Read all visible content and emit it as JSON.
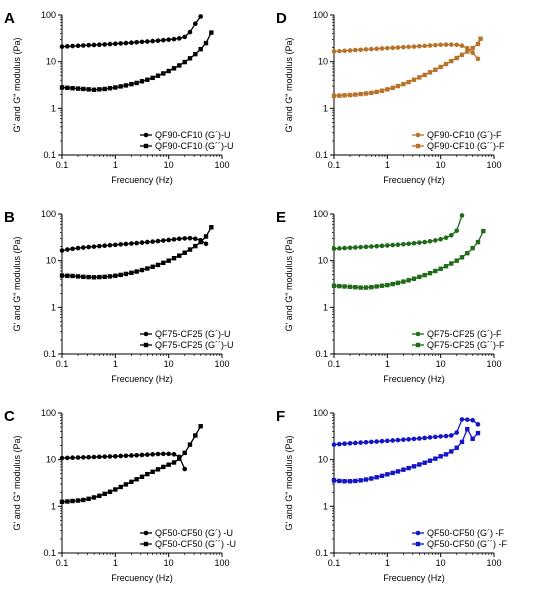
{
  "chart_data": [
    {
      "type": "line",
      "panel": "A",
      "color": "#000000",
      "xscale": "log",
      "yscale": "log",
      "xlim": [
        0.1,
        100
      ],
      "ylim": [
        0.1,
        100
      ],
      "xticks": [
        "0.1",
        "1",
        "10",
        "100"
      ],
      "yticks": [
        "0.1",
        "1",
        "10",
        "100"
      ],
      "xlabel": "Frecuency (Hz)",
      "ylabel": "G' and G\" modulus (Pa)",
      "legend_position": "bottom-right",
      "series": [
        {
          "name": "QF90-CF10 (G´)-U",
          "marker": "circle",
          "x": [
            0.1,
            0.126,
            0.158,
            0.2,
            0.251,
            0.316,
            0.398,
            0.501,
            0.631,
            0.794,
            1,
            1.26,
            1.58,
            2,
            2.51,
            3.16,
            3.98,
            5.01,
            6.31,
            7.94,
            10,
            12.6,
            15.8,
            20,
            25.1,
            31.6,
            39.8
          ],
          "y": [
            21,
            21.3,
            21.6,
            21.9,
            22.2,
            22.5,
            22.8,
            23.1,
            23.4,
            23.8,
            24.2,
            24.6,
            25,
            25.5,
            26,
            26.5,
            27,
            27.6,
            28.2,
            28.9,
            29.6,
            30.4,
            31.5,
            34,
            43,
            65,
            93
          ]
        },
        {
          "name": "QF90-CF10 (G´´)-U",
          "marker": "square",
          "x": [
            0.1,
            0.126,
            0.158,
            0.2,
            0.251,
            0.316,
            0.398,
            0.501,
            0.631,
            0.794,
            1,
            1.26,
            1.58,
            2,
            2.51,
            3.16,
            3.98,
            5.01,
            6.31,
            7.94,
            10,
            12.6,
            15.8,
            20,
            25.1,
            31.6,
            39.8,
            50.1,
            63.1
          ],
          "y": [
            2.8,
            2.75,
            2.7,
            2.65,
            2.6,
            2.55,
            2.5,
            2.55,
            2.6,
            2.7,
            2.8,
            2.95,
            3.1,
            3.3,
            3.5,
            3.8,
            4.1,
            4.5,
            5,
            5.6,
            6.3,
            7.2,
            8.3,
            9.8,
            11.8,
            14.5,
            18.5,
            25,
            42
          ]
        }
      ]
    },
    {
      "type": "line",
      "panel": "B",
      "color": "#000000",
      "xscale": "log",
      "yscale": "log",
      "xlim": [
        0.1,
        100
      ],
      "ylim": [
        0.1,
        100
      ],
      "xticks": [
        "0.1",
        "1",
        "10",
        "100"
      ],
      "yticks": [
        "0.1",
        "1",
        "10",
        "100"
      ],
      "xlabel": "Frecuency (Hz)",
      "ylabel": "G' and G\" modulus (Pa)",
      "legend_position": "bottom-right",
      "series": [
        {
          "name": "QF75-CF25 (G´)-U",
          "marker": "circle",
          "x": [
            0.1,
            0.126,
            0.158,
            0.2,
            0.251,
            0.316,
            0.398,
            0.501,
            0.631,
            0.794,
            1,
            1.26,
            1.58,
            2,
            2.51,
            3.16,
            3.98,
            5.01,
            6.31,
            7.94,
            10,
            12.6,
            15.8,
            20,
            25.1,
            31.6,
            39.8,
            50.1
          ],
          "y": [
            16.5,
            17.3,
            18,
            18.6,
            19.1,
            19.6,
            20,
            20.5,
            20.9,
            21.4,
            21.8,
            22.3,
            22.8,
            23.3,
            23.8,
            24.4,
            25,
            25.6,
            26.3,
            27,
            27.8,
            28.6,
            29.4,
            30,
            30.3,
            29.5,
            27.5,
            23
          ]
        },
        {
          "name": "QF75-CF25 (G´´)-U",
          "marker": "square",
          "x": [
            0.1,
            0.126,
            0.158,
            0.2,
            0.251,
            0.316,
            0.398,
            0.501,
            0.631,
            0.794,
            1,
            1.26,
            1.58,
            2,
            2.51,
            3.16,
            3.98,
            5.01,
            6.31,
            7.94,
            10,
            12.6,
            15.8,
            20,
            25.1,
            31.6,
            39.8,
            50.1,
            63.1
          ],
          "y": [
            4.8,
            4.75,
            4.7,
            4.6,
            4.5,
            4.45,
            4.4,
            4.45,
            4.5,
            4.6,
            4.75,
            4.95,
            5.2,
            5.5,
            5.85,
            6.3,
            6.8,
            7.4,
            8.1,
            9,
            10,
            11.3,
            12.8,
            14.8,
            17.3,
            20.5,
            25,
            33,
            52
          ]
        }
      ]
    },
    {
      "type": "line",
      "panel": "C",
      "color": "#000000",
      "xscale": "log",
      "yscale": "log",
      "xlim": [
        0.1,
        100
      ],
      "ylim": [
        0.1,
        100
      ],
      "xticks": [
        "0.1",
        "1",
        "10",
        "100"
      ],
      "yticks": [
        "0.1",
        "1",
        "10",
        "100"
      ],
      "xlabel": "Frecuency (Hz)",
      "ylabel": "G' and G\" modulus (Pa)",
      "legend_position": "bottom-right",
      "series": [
        {
          "name": "QF50-CF50 (G´) -U",
          "marker": "circle",
          "x": [
            0.1,
            0.126,
            0.158,
            0.2,
            0.251,
            0.316,
            0.398,
            0.501,
            0.631,
            0.794,
            1,
            1.26,
            1.58,
            2,
            2.51,
            3.16,
            3.98,
            5.01,
            6.31,
            7.94,
            10,
            12.6,
            15.8,
            20
          ],
          "y": [
            10.8,
            10.9,
            11,
            11.1,
            11.2,
            11.3,
            11.4,
            11.5,
            11.6,
            11.7,
            11.8,
            12,
            12.1,
            12.3,
            12.4,
            12.6,
            12.8,
            13,
            13.2,
            13.3,
            13.3,
            13,
            11.5,
            6.3
          ]
        },
        {
          "name": "QF50-CF50 (G´´) -U",
          "marker": "square",
          "x": [
            0.1,
            0.126,
            0.158,
            0.2,
            0.251,
            0.316,
            0.398,
            0.501,
            0.631,
            0.794,
            1,
            1.26,
            1.58,
            2,
            2.51,
            3.16,
            3.98,
            5.01,
            6.31,
            7.94,
            10,
            12.6,
            15.8,
            20,
            25.1,
            31.6,
            39.8
          ],
          "y": [
            1.25,
            1.27,
            1.3,
            1.33,
            1.37,
            1.45,
            1.55,
            1.68,
            1.85,
            2.05,
            2.3,
            2.6,
            2.95,
            3.35,
            3.8,
            4.3,
            4.9,
            5.5,
            6.2,
            7,
            7.8,
            8.7,
            10.5,
            14,
            21,
            33,
            52
          ]
        }
      ]
    },
    {
      "type": "line",
      "panel": "D",
      "color": "#b8732a",
      "xscale": "log",
      "yscale": "log",
      "xlim": [
        0.1,
        100
      ],
      "ylim": [
        0.1,
        100
      ],
      "xticks": [
        "0.1",
        "1",
        "10",
        "100"
      ],
      "yticks": [
        "0.1",
        "1",
        "10",
        "100"
      ],
      "xlabel": "Frecuency (Hz)",
      "ylabel": "G' and G\" modulus (Pa)",
      "legend_position": "bottom-right",
      "series": [
        {
          "name": "QF90-CF10 (G´)-F",
          "marker": "circle",
          "x": [
            0.1,
            0.126,
            0.158,
            0.2,
            0.251,
            0.316,
            0.398,
            0.501,
            0.631,
            0.794,
            1,
            1.26,
            1.58,
            2,
            2.51,
            3.16,
            3.98,
            5.01,
            6.31,
            7.94,
            10,
            12.6,
            15.8,
            20,
            25.1,
            31.6,
            39.8,
            50.1
          ],
          "y": [
            16.5,
            16.8,
            17.1,
            17.4,
            17.7,
            18,
            18.3,
            18.6,
            18.9,
            19.2,
            19.5,
            19.8,
            20.1,
            20.4,
            20.7,
            21,
            21.4,
            21.8,
            22.2,
            22.6,
            23,
            23.2,
            23.2,
            23,
            22,
            19.5,
            15.5,
            11.5
          ]
        },
        {
          "name": "QF90-CF10 (G´´)-F",
          "marker": "square",
          "x": [
            0.1,
            0.126,
            0.158,
            0.2,
            0.251,
            0.316,
            0.398,
            0.501,
            0.631,
            0.794,
            1,
            1.26,
            1.58,
            2,
            2.51,
            3.16,
            3.98,
            5.01,
            6.31,
            7.94,
            10,
            12.6,
            15.8,
            20,
            25.1,
            31.6,
            39.8,
            50.1,
            56
          ],
          "y": [
            1.85,
            1.87,
            1.9,
            1.93,
            1.97,
            2.02,
            2.08,
            2.15,
            2.25,
            2.38,
            2.55,
            2.75,
            3,
            3.3,
            3.65,
            4.1,
            4.6,
            5.2,
            5.9,
            6.7,
            7.7,
            8.9,
            10.3,
            12,
            14,
            16.5,
            19.5,
            24,
            31
          ]
        }
      ]
    },
    {
      "type": "line",
      "panel": "E",
      "color": "#1f6b1a",
      "xscale": "log",
      "yscale": "log",
      "xlim": [
        0.1,
        100
      ],
      "ylim": [
        0.1,
        100
      ],
      "xticks": [
        "0.1",
        "1",
        "10",
        "100"
      ],
      "yticks": [
        "0.1",
        "1",
        "10",
        "100"
      ],
      "xlabel": "Frecuency (Hz)",
      "ylabel": "G' and G\" modulus (Pa)",
      "legend_position": "bottom-right",
      "series": [
        {
          "name": "QF75-CF25 (G´)-F",
          "marker": "circle",
          "x": [
            0.1,
            0.126,
            0.158,
            0.2,
            0.251,
            0.316,
            0.398,
            0.501,
            0.631,
            0.794,
            1,
            1.26,
            1.58,
            2,
            2.51,
            3.16,
            3.98,
            5.01,
            6.31,
            7.94,
            10,
            12.6,
            15.8,
            20,
            25.1
          ],
          "y": [
            18,
            18.3,
            18.6,
            18.9,
            19.2,
            19.5,
            19.8,
            20.1,
            20.4,
            20.8,
            21.2,
            21.6,
            22,
            22.5,
            23,
            23.6,
            24.3,
            25,
            26,
            27.2,
            28.8,
            31,
            35,
            44,
            93
          ]
        },
        {
          "name": "QF75-CF25 (G´´)-F",
          "marker": "square",
          "x": [
            0.1,
            0.126,
            0.158,
            0.2,
            0.251,
            0.316,
            0.398,
            0.501,
            0.631,
            0.794,
            1,
            1.26,
            1.58,
            2,
            2.51,
            3.16,
            3.98,
            5.01,
            6.31,
            7.94,
            10,
            12.6,
            15.8,
            20,
            25.1,
            31.6,
            39.8,
            50.1,
            63.1
          ],
          "y": [
            2.9,
            2.85,
            2.8,
            2.75,
            2.7,
            2.65,
            2.65,
            2.7,
            2.8,
            2.9,
            3,
            3.15,
            3.35,
            3.55,
            3.8,
            4.1,
            4.5,
            4.9,
            5.4,
            6,
            6.7,
            7.6,
            8.7,
            10,
            11.8,
            14.5,
            18.5,
            25,
            43
          ]
        }
      ]
    },
    {
      "type": "line",
      "panel": "F",
      "color": "#1414c8",
      "xscale": "log",
      "yscale": "log",
      "xlim": [
        0.1,
        100
      ],
      "ylim": [
        0.1,
        100
      ],
      "xticks": [
        "0.1",
        "1",
        "10",
        "100"
      ],
      "yticks": [
        "0.1",
        "1",
        "10",
        "100"
      ],
      "xlabel": "Frecuency (Hz)",
      "ylabel": "G' and G\" modulus (Pa)",
      "legend_position": "bottom-right",
      "series": [
        {
          "name": "QF50-CF50 (G´) -F",
          "marker": "circle",
          "x": [
            0.1,
            0.126,
            0.158,
            0.2,
            0.251,
            0.316,
            0.398,
            0.501,
            0.631,
            0.794,
            1,
            1.26,
            1.58,
            2,
            2.51,
            3.16,
            3.98,
            5.01,
            6.31,
            7.94,
            10,
            12.6,
            15.8,
            20,
            25.1,
            31.6,
            39.8,
            50.1
          ],
          "y": [
            21,
            21.5,
            22,
            22.4,
            22.8,
            23.2,
            23.6,
            24,
            24.4,
            24.9,
            25.3,
            25.8,
            26.3,
            26.8,
            27.3,
            27.9,
            28.5,
            29.2,
            30,
            30.8,
            31.5,
            32,
            33,
            38,
            73,
            72,
            70,
            57
          ]
        },
        {
          "name": "QF50-CF50 (G´´) -F",
          "marker": "square",
          "x": [
            0.1,
            0.126,
            0.158,
            0.2,
            0.251,
            0.316,
            0.398,
            0.501,
            0.631,
            0.794,
            1,
            1.26,
            1.58,
            2,
            2.51,
            3.16,
            3.98,
            5.01,
            6.31,
            7.94,
            10,
            12.6,
            15.8,
            20,
            25.1,
            31.6,
            39.8,
            50.1
          ],
          "y": [
            3.6,
            3.5,
            3.45,
            3.45,
            3.5,
            3.6,
            3.75,
            3.95,
            4.2,
            4.5,
            4.85,
            5.2,
            5.6,
            6.1,
            6.6,
            7.2,
            7.9,
            8.6,
            9.5,
            10.5,
            11.8,
            13,
            15,
            18,
            24,
            45,
            28,
            37
          ]
        }
      ]
    }
  ]
}
